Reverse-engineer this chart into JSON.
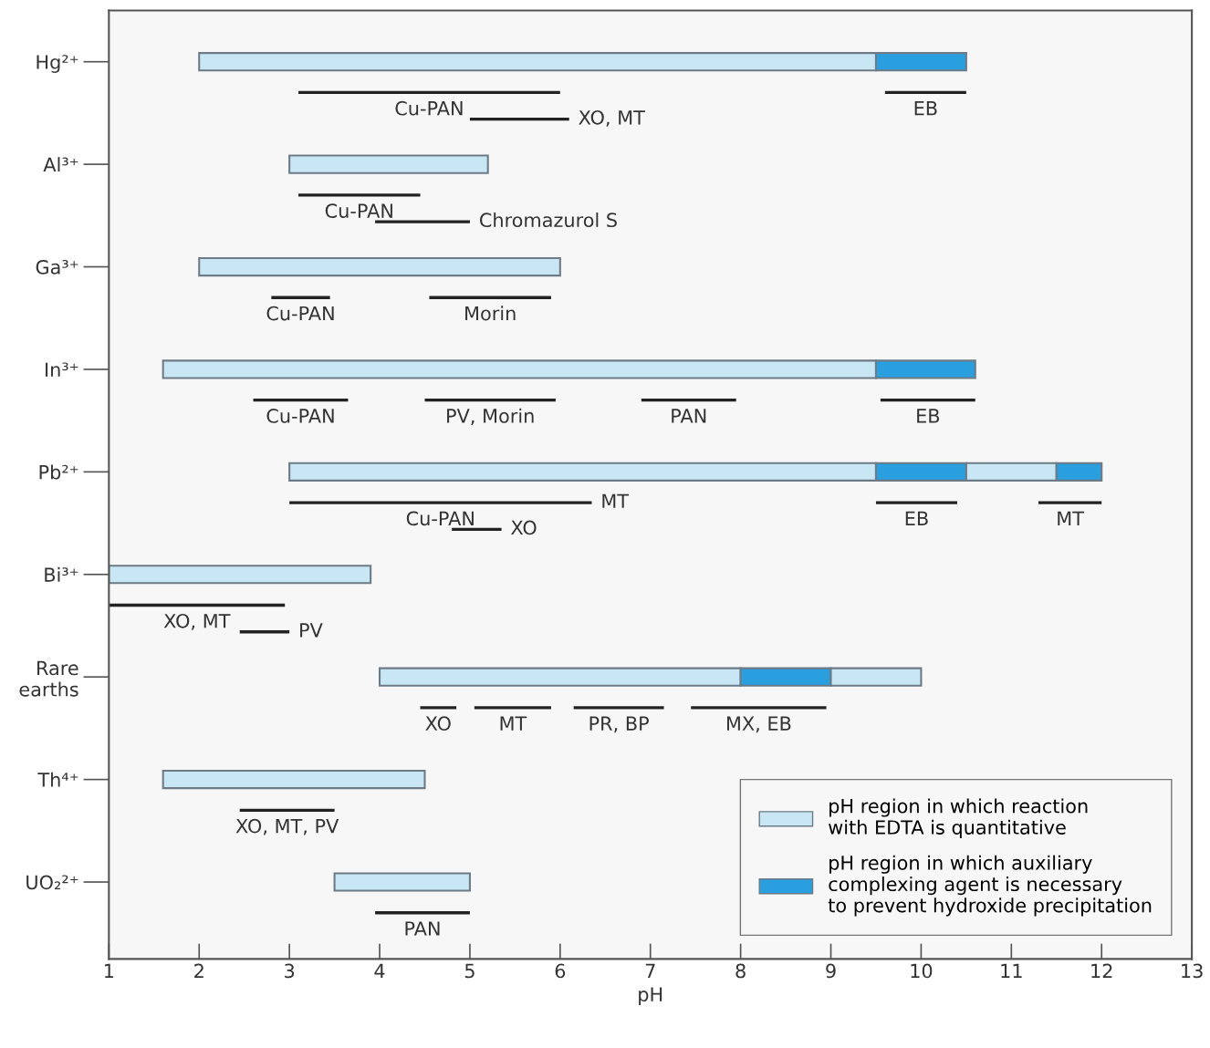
{
  "chart_data": {
    "type": "bar",
    "orientation": "horizontal",
    "xlabel": "pH",
    "categories": [
      "Hg²⁺",
      "Al³⁺",
      "Ga³⁺",
      "In³⁺",
      "Pb²⁺",
      "Bi³⁺",
      "Rare\nearths",
      "Th⁴⁺",
      "UO₂²⁺"
    ],
    "xlim": [
      1,
      13
    ],
    "xticks": [
      1,
      2,
      3,
      4,
      5,
      6,
      7,
      8,
      9,
      10,
      11,
      12,
      13
    ],
    "grid": false,
    "legend": "bottom right",
    "series": [
      {
        "name": "pH region in which reaction\nwith EDTA is quantitative",
        "color": "#c9e6f5",
        "base": [
          2.0,
          3.0,
          2.0,
          1.6,
          3.0,
          1.0,
          4.0,
          1.6,
          3.5
        ],
        "values": [
          7.5,
          2.2,
          4.0,
          7.9,
          6.5,
          2.9,
          4.0,
          2.9,
          1.5
        ]
      },
      {
        "name": "pH region in which auxiliary\ncomplexing agent is necessary\nto prevent hydroxide precipitation",
        "color": "#2a9fe0",
        "base": [
          9.5,
          null,
          null,
          9.5,
          9.5,
          null,
          8.0,
          null,
          null
        ],
        "values": [
          1.0,
          null,
          null,
          1.1,
          1.0,
          null,
          1.0,
          null,
          null
        ]
      },
      {
        "color": "#c9e6f5",
        "base": [
          null,
          null,
          null,
          null,
          10.5,
          null,
          9.0,
          null,
          null
        ],
        "values": [
          null,
          null,
          null,
          null,
          1.0,
          null,
          1.0,
          null,
          null
        ]
      },
      {
        "color": "#2a9fe0",
        "base": [
          null,
          null,
          null,
          null,
          11.5,
          null,
          null,
          null,
          null
        ],
        "values": [
          null,
          null,
          null,
          null,
          0.5,
          null,
          null,
          null,
          null
        ]
      },
      {
        "color": "#222222",
        "base": [
          3.1,
          3.1,
          2.8,
          2.6,
          3.0,
          1.0,
          4.45,
          2.45,
          3.95
        ],
        "values": [
          2.9,
          1.35,
          0.65,
          1.05,
          3.35,
          1.95,
          0.4,
          1.05,
          1.05
        ],
        "value_labels": [
          "Cu-PAN",
          "Cu-PAN",
          "Cu-PAN",
          "Cu-PAN",
          "Cu-PAN",
          "XO, MT",
          "XO",
          "XO, MT, PV",
          "PAN"
        ]
      },
      {
        "color": "#222222",
        "base": [
          9.6,
          null,
          4.55,
          4.5,
          9.5,
          null,
          5.05,
          null,
          null
        ],
        "values": [
          0.9,
          null,
          1.35,
          1.45,
          0.9,
          null,
          0.85,
          null,
          null
        ],
        "value_labels": [
          "EB",
          null,
          "Morin",
          "PV, Morin",
          "EB",
          null,
          "MT",
          null,
          null
        ]
      },
      {
        "color": "#222222",
        "base": [
          null,
          null,
          null,
          6.9,
          11.3,
          null,
          6.15,
          null,
          null
        ],
        "values": [
          null,
          null,
          null,
          1.05,
          0.7,
          null,
          1.0,
          null,
          null
        ],
        "value_labels": [
          null,
          null,
          null,
          "PAN",
          "MT",
          null,
          "PR, BP",
          null,
          null
        ]
      },
      {
        "color": "#222222",
        "base": [
          null,
          null,
          null,
          9.55,
          null,
          null,
          7.45,
          null,
          null
        ],
        "values": [
          null,
          null,
          null,
          1.05,
          null,
          null,
          1.5,
          null,
          null
        ],
        "value_labels": [
          null,
          null,
          null,
          "EB",
          null,
          null,
          "MX, EB",
          null,
          null
        ]
      },
      {
        "color": "#222222",
        "base": [
          5.0,
          3.95,
          null,
          null,
          4.8,
          2.45,
          null,
          null,
          null
        ],
        "values": [
          1.1,
          1.05,
          null,
          null,
          0.55,
          0.55,
          null,
          null,
          null
        ],
        "value_labels": [
          "XO, MT",
          "Chromazurol S",
          null,
          null,
          "XO",
          "PV",
          null,
          null,
          null
        ]
      }
    ],
    "annotations": [
      "MT"
    ]
  }
}
